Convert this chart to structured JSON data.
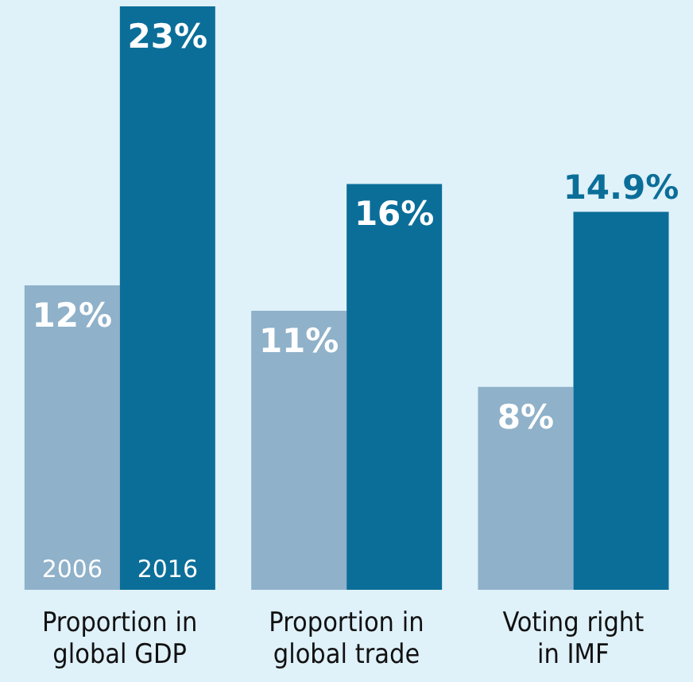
{
  "chart_data": {
    "type": "bar",
    "categories": [
      "Proportion in global GDP",
      "Proportion in global trade",
      "Voting right in IMF"
    ],
    "series": [
      {
        "name": "2006",
        "color": "#8fb1c9",
        "values": [
          12,
          11,
          8
        ],
        "value_labels": [
          "12%",
          "11%",
          "8%"
        ]
      },
      {
        "name": "2016",
        "color": "#0b6e99",
        "values": [
          23,
          16,
          14.9
        ],
        "value_labels": [
          "23%",
          "16%",
          "14.9%"
        ]
      }
    ],
    "tick_labels": "x"
  }
}
